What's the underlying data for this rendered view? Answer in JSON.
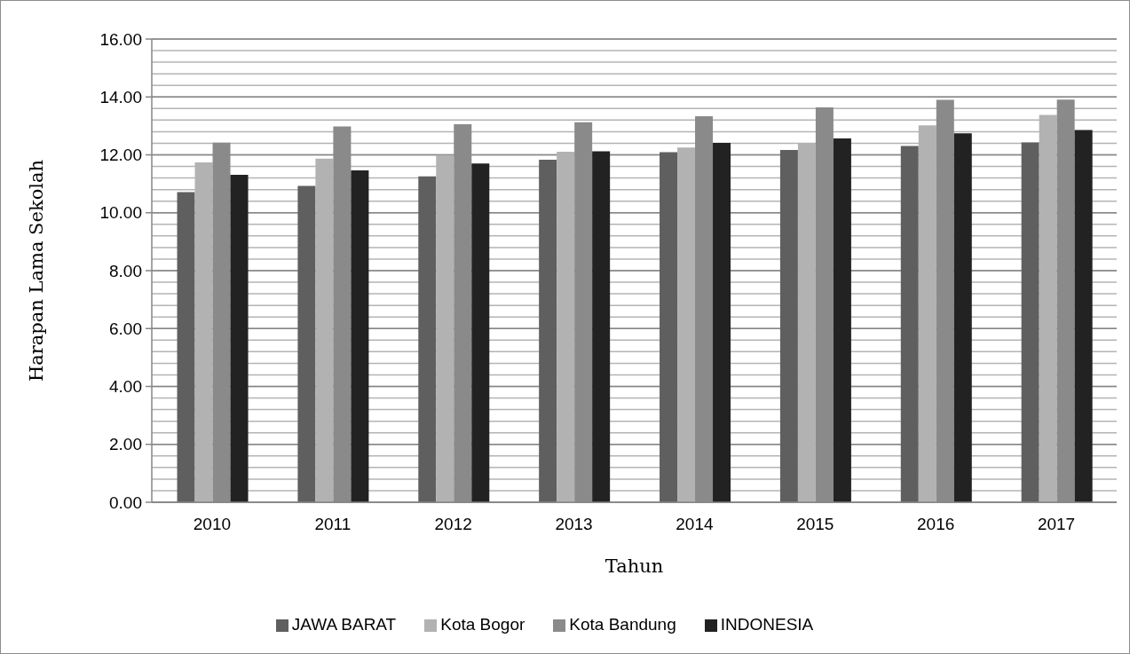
{
  "chart_data": {
    "type": "bar",
    "xlabel": "Tahun",
    "ylabel": "Harapan Lama Sekolah",
    "categories": [
      "2010",
      "2011",
      "2012",
      "2013",
      "2014",
      "2015",
      "2016",
      "2017"
    ],
    "series": [
      {
        "name": "JAWA BARAT",
        "color": "#5f5f5f",
        "values": [
          10.71,
          10.93,
          11.26,
          11.83,
          12.09,
          12.17,
          12.31,
          12.43
        ]
      },
      {
        "name": "Kota Bogor",
        "color": "#b2b2b2",
        "values": [
          11.74,
          11.87,
          11.99,
          12.11,
          12.25,
          12.4,
          13.02,
          13.38
        ]
      },
      {
        "name": "Kota Bandung",
        "color": "#8a8a8a",
        "values": [
          12.42,
          12.98,
          13.06,
          13.13,
          13.33,
          13.64,
          13.9,
          13.91
        ]
      },
      {
        "name": "INDONESIA",
        "color": "#222222",
        "values": [
          11.31,
          11.46,
          11.7,
          12.12,
          12.41,
          12.57,
          12.74,
          12.86
        ]
      }
    ],
    "ylim": [
      0,
      16
    ],
    "yticks": [
      {
        "value": 0,
        "label": "0.00"
      },
      {
        "value": 0.4,
        "label": null
      },
      {
        "value": 0.8,
        "label": null
      },
      {
        "value": 1.2,
        "label": null
      },
      {
        "value": 1.6,
        "label": null
      },
      {
        "value": 2,
        "label": "2.00"
      },
      {
        "value": 2.4,
        "label": null
      },
      {
        "value": 2.8,
        "label": null
      },
      {
        "value": 3.2,
        "label": null
      },
      {
        "value": 3.6,
        "label": null
      },
      {
        "value": 4,
        "label": "4.00"
      },
      {
        "value": 4.4,
        "label": null
      },
      {
        "value": 4.8,
        "label": null
      },
      {
        "value": 5.2,
        "label": null
      },
      {
        "value": 5.6,
        "label": null
      },
      {
        "value": 6,
        "label": "6.00"
      },
      {
        "value": 6.4,
        "label": null
      },
      {
        "value": 6.8,
        "label": null
      },
      {
        "value": 7.2,
        "label": null
      },
      {
        "value": 7.6,
        "label": null
      },
      {
        "value": 8,
        "label": "8.00"
      },
      {
        "value": 8.4,
        "label": null
      },
      {
        "value": 8.8,
        "label": null
      },
      {
        "value": 9.2,
        "label": null
      },
      {
        "value": 9.6,
        "label": null
      },
      {
        "value": 10,
        "label": "10.00"
      },
      {
        "value": 10.4,
        "label": null
      },
      {
        "value": 10.8,
        "label": null
      },
      {
        "value": 11.2,
        "label": null
      },
      {
        "value": 11.6,
        "label": null
      },
      {
        "value": 12,
        "label": "12.00"
      },
      {
        "value": 12.4,
        "label": null
      },
      {
        "value": 12.8,
        "label": null
      },
      {
        "value": 13.2,
        "label": null
      },
      {
        "value": 13.6,
        "label": null
      },
      {
        "value": 14,
        "label": "14.00"
      },
      {
        "value": 14.4,
        "label": null
      },
      {
        "value": 14.8,
        "label": null
      },
      {
        "value": 15.2,
        "label": null
      },
      {
        "value": 15.6,
        "label": null
      },
      {
        "value": 16,
        "label": "16.00"
      }
    ],
    "grid": "y",
    "legend": "bottom"
  }
}
